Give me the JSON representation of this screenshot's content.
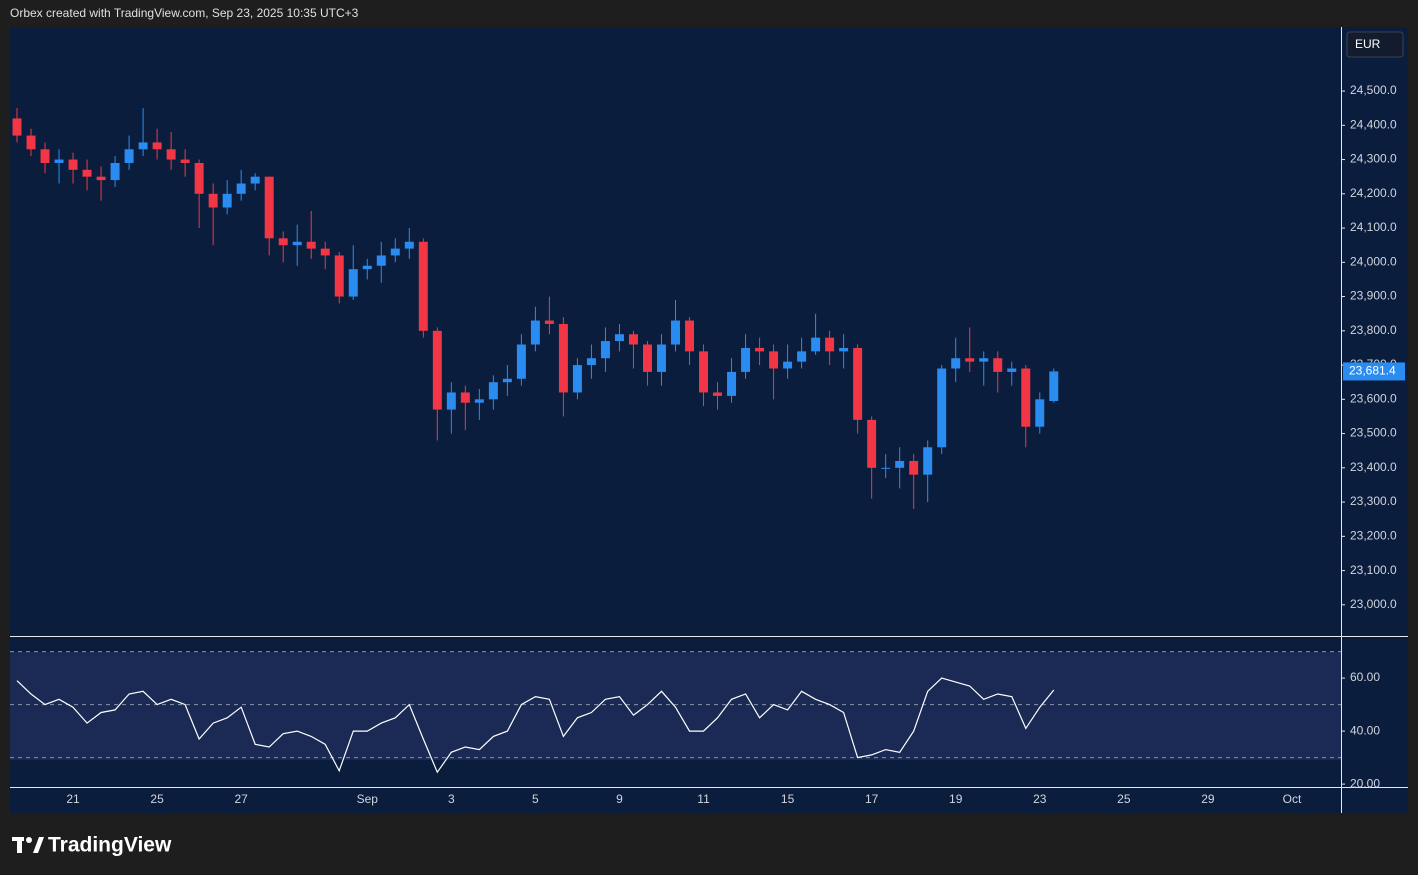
{
  "header": {
    "attribution": "Orbex created with TradingView.com, Sep 23, 2025 10:35 UTC+3"
  },
  "footer": {
    "brand": "TradingView"
  },
  "chart_data": [
    {
      "type": "candlestick",
      "currency": "EUR",
      "up_color": "#2a8cf0",
      "down_color": "#f23645",
      "categories": [
        null,
        null,
        null,
        null,
        "21",
        null,
        null,
        null,
        null,
        null,
        "25",
        null,
        null,
        null,
        null,
        null,
        "27",
        null,
        null,
        null,
        null,
        null,
        null,
        null,
        null,
        "Sep",
        null,
        null,
        null,
        null,
        null,
        "3",
        null,
        null,
        null,
        null,
        null,
        "5",
        null,
        null,
        null,
        null,
        null,
        "9",
        null,
        null,
        null,
        null,
        null,
        "11",
        null,
        null,
        null,
        null,
        null,
        "15",
        null,
        null,
        null,
        null,
        null,
        "17",
        null,
        null,
        null,
        null,
        null,
        "19",
        null,
        null,
        null,
        null,
        null,
        "23",
        null,
        null,
        null,
        null,
        null,
        "25",
        null,
        null,
        null,
        null,
        null,
        "29",
        null,
        null,
        null,
        null,
        null,
        "Oct",
        null,
        null,
        null
      ],
      "open": [
        24420,
        24370,
        24330,
        24290,
        24300,
        24270,
        24250,
        24240,
        24290,
        24330,
        24350,
        24330,
        24300,
        24290,
        24200,
        24160,
        24200,
        24230,
        24250,
        24070,
        24050,
        24060,
        24040,
        24020,
        23900,
        23980,
        23990,
        24020,
        24040,
        24060,
        23800,
        23570,
        23620,
        23590,
        23600,
        23650,
        23660,
        23760,
        23830,
        23820,
        23620,
        23700,
        23720,
        23770,
        23790,
        23760,
        23680,
        23760,
        23830,
        23740,
        23620,
        23610,
        23680,
        23750,
        23740,
        23690,
        23710,
        23740,
        23780,
        23740,
        23750,
        23540,
        23400,
        23400,
        23420,
        23380,
        23460,
        23690,
        23720,
        23710,
        23720,
        23680,
        23690,
        23520,
        23595,
        null,
        null,
        null,
        null,
        null,
        null,
        null,
        null,
        null,
        null,
        null,
        null,
        null,
        null,
        null,
        null,
        null,
        null,
        null,
        null
      ],
      "high": [
        24450,
        24390,
        24350,
        24330,
        24320,
        24300,
        24280,
        24310,
        24370,
        24450,
        24390,
        24380,
        24330,
        24300,
        24230,
        24240,
        24270,
        24260,
        24250,
        24090,
        24110,
        24150,
        24060,
        24030,
        24050,
        24010,
        24060,
        24070,
        24100,
        24070,
        23810,
        23650,
        23640,
        23630,
        23670,
        23700,
        23790,
        23870,
        23900,
        23840,
        23720,
        23760,
        23810,
        23820,
        23800,
        23770,
        23790,
        23890,
        23840,
        23760,
        23650,
        23720,
        23790,
        23780,
        23760,
        23760,
        23780,
        23850,
        23800,
        23790,
        23760,
        23550,
        23440,
        23460,
        23440,
        23480,
        23700,
        23780,
        23810,
        23740,
        23740,
        23710,
        23700,
        23620,
        23690,
        null,
        null,
        null,
        null,
        null,
        null,
        null,
        null,
        null,
        null,
        null,
        null,
        null,
        null,
        null,
        null,
        null,
        null,
        null,
        null
      ],
      "low": [
        24350,
        24310,
        24260,
        24230,
        24230,
        24210,
        24180,
        24220,
        24270,
        24310,
        24300,
        24270,
        24250,
        24100,
        24050,
        24140,
        24180,
        24210,
        24020,
        24000,
        23990,
        24010,
        23980,
        23880,
        23890,
        23950,
        23940,
        24000,
        24010,
        23780,
        23480,
        23500,
        23510,
        23540,
        23570,
        23610,
        23640,
        23740,
        23790,
        23550,
        23600,
        23660,
        23680,
        23740,
        23690,
        23640,
        23640,
        23740,
        23700,
        23580,
        23570,
        23590,
        23660,
        23700,
        23600,
        23660,
        23690,
        23730,
        23700,
        23690,
        23500,
        23310,
        23370,
        23340,
        23280,
        23300,
        23440,
        23650,
        23680,
        23640,
        23620,
        23640,
        23460,
        23500,
        23590,
        null,
        null,
        null,
        null,
        null,
        null,
        null,
        null,
        null,
        null,
        null,
        null,
        null,
        null,
        null,
        null,
        null,
        null,
        null,
        null
      ],
      "close": [
        24370,
        24330,
        24290,
        24300,
        24270,
        24250,
        24240,
        24290,
        24330,
        24350,
        24330,
        24300,
        24290,
        24200,
        24160,
        24200,
        24230,
        24250,
        24070,
        24050,
        24060,
        24040,
        24020,
        23900,
        23980,
        23990,
        24020,
        24040,
        24060,
        23800,
        23570,
        23620,
        23590,
        23600,
        23650,
        23660,
        23760,
        23830,
        23820,
        23620,
        23700,
        23720,
        23770,
        23790,
        23760,
        23680,
        23760,
        23830,
        23740,
        23620,
        23610,
        23680,
        23750,
        23740,
        23690,
        23710,
        23740,
        23780,
        23740,
        23750,
        23540,
        23400,
        23400,
        23420,
        23380,
        23460,
        23690,
        23720,
        23710,
        23720,
        23680,
        23690,
        23520,
        23600,
        23681.4,
        null,
        null,
        null,
        null,
        null,
        null,
        null,
        null,
        null,
        null,
        null,
        null,
        null,
        null,
        null,
        null,
        null,
        null,
        null,
        null
      ],
      "ylim": [
        22909,
        24687
      ],
      "yticks": [
        {
          "value": 23000,
          "label": "23,000.0"
        },
        {
          "value": 23100,
          "label": "23,100.0"
        },
        {
          "value": 23200,
          "label": "23,200.0"
        },
        {
          "value": 23300,
          "label": "23,300.0"
        },
        {
          "value": 23400,
          "label": "23,400.0"
        },
        {
          "value": 23500,
          "label": "23,500.0"
        },
        {
          "value": 23600,
          "label": "23,600.0"
        },
        {
          "value": 23700,
          "label": "23,700.0"
        },
        {
          "value": 23800,
          "label": "23,800.0"
        },
        {
          "value": 23900,
          "label": "23,900.0"
        },
        {
          "value": 24000,
          "label": "24,000.0"
        },
        {
          "value": 24100,
          "label": "24,100.0"
        },
        {
          "value": 24200,
          "label": "24,200.0"
        },
        {
          "value": 24300,
          "label": "24,300.0"
        },
        {
          "value": 24400,
          "label": "24,400.0"
        },
        {
          "value": 24500,
          "label": "24,500.0"
        }
      ],
      "price_marker": {
        "value": 23681.4,
        "label": "23,681.4"
      }
    },
    {
      "type": "line",
      "color": "#ffffff",
      "values": [
        59,
        54,
        50,
        52,
        49,
        43,
        47,
        48,
        54,
        55,
        50,
        52,
        50,
        37,
        43,
        45,
        49,
        35,
        34,
        39,
        40,
        38,
        35,
        25,
        40,
        40,
        43,
        45,
        50,
        37,
        24.5,
        32,
        34,
        33,
        38,
        40,
        50,
        53,
        52,
        38,
        45,
        47,
        52,
        53,
        46,
        50,
        55,
        49,
        40,
        40,
        45,
        52,
        54,
        45,
        50,
        48,
        55,
        52,
        50,
        47,
        30,
        31,
        33,
        32,
        40,
        55,
        60,
        58.5,
        57,
        52,
        54,
        53,
        41,
        49,
        55.5,
        null,
        null,
        null,
        null,
        null,
        null,
        null,
        null,
        null,
        null,
        null,
        null,
        null,
        null,
        null,
        null,
        null,
        null,
        null,
        null
      ],
      "ylim": [
        18.9,
        75.5
      ],
      "yticks": [
        {
          "value": 20,
          "label": "20.00"
        },
        {
          "value": 40,
          "label": "40.00"
        },
        {
          "value": 60,
          "label": "60.00"
        }
      ],
      "levels": [
        30,
        50,
        70
      ]
    }
  ]
}
